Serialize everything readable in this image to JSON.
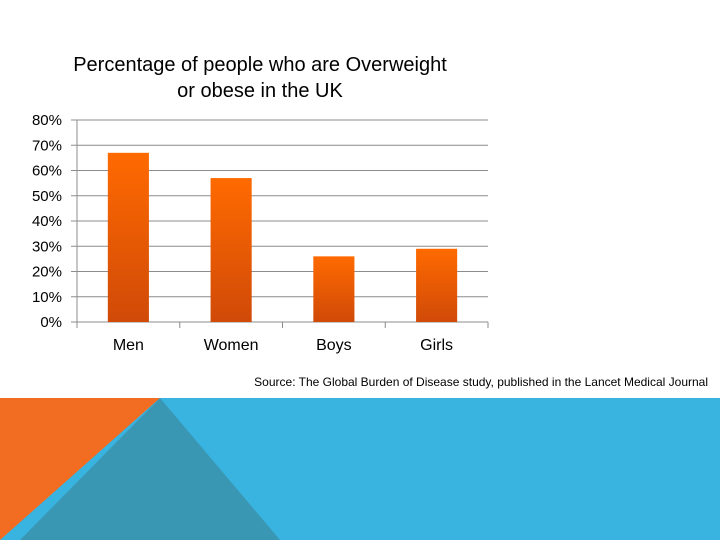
{
  "chart_data": {
    "type": "bar",
    "title_lines": [
      "Percentage of people who are Overweight",
      "or obese  in the UK"
    ],
    "categories": [
      "Men",
      "Women",
      "Boys",
      "Girls"
    ],
    "values": [
      67,
      57,
      26,
      29
    ],
    "ylim": [
      0,
      80
    ],
    "yticks": [
      "0%",
      "10%",
      "20%",
      "30%",
      "40%",
      "50%",
      "60%",
      "70%",
      "80%"
    ],
    "grid": true,
    "bar_color_top": "#ff6a00",
    "bar_color_bottom": "#d04a08"
  },
  "source_text": "Source: The Global Burden of Disease study, published in the Lancet Medical Journal",
  "colors": {
    "band_blue": "#39b3e0",
    "triangle_orange": "#f26d21",
    "triangle_teal": "#3a97b4"
  }
}
